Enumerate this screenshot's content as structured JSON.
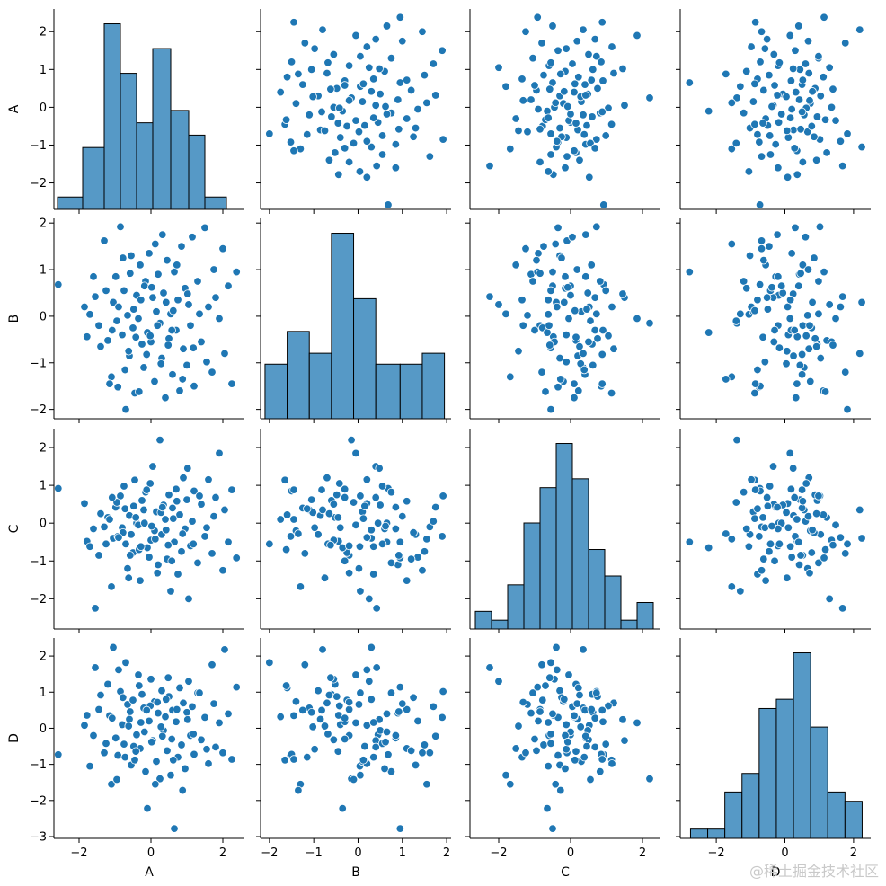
{
  "chart_data": {
    "type": "pairplot",
    "variables": [
      "A",
      "B",
      "C",
      "D"
    ],
    "marker_color": "#1f77b4",
    "hist_fill": "#5699c6",
    "axes": {
      "A": {
        "lim": [
          -2.7,
          2.6
        ],
        "ticks": [
          -2,
          -1,
          0,
          1,
          2
        ],
        "xticks": [
          -2,
          0,
          2
        ]
      },
      "B": {
        "lim": [
          -2.2,
          2.1
        ],
        "ticks": [
          -2,
          -1,
          0,
          1,
          2
        ],
        "xticks": [
          -2,
          -1,
          0,
          1,
          2
        ]
      },
      "C": {
        "lim": [
          -2.8,
          2.5
        ],
        "ticks": [
          -2,
          -1,
          0,
          1,
          2
        ],
        "xticks": [
          -2,
          0,
          2
        ]
      },
      "D": {
        "lim": [
          -3.05,
          2.5
        ],
        "ticks": [
          -3,
          -2,
          -1,
          0,
          1,
          2
        ],
        "xticks": [
          -2,
          0,
          2
        ]
      }
    },
    "histograms": {
      "A": {
        "edges": [
          -2.6,
          -1.9,
          -1.3,
          -0.85,
          -0.4,
          0.05,
          0.55,
          1.05,
          1.5,
          2.1,
          2.45
        ],
        "heights": [
          1.0,
          5.0,
          15.0,
          11.0,
          7.0,
          13.0,
          8.0,
          6.0,
          1.0,
          0.0
        ]
      },
      "B": {
        "edges": [
          -2.1,
          -1.6,
          -1.1,
          -0.6,
          -0.1,
          0.4,
          0.95,
          1.45,
          1.95
        ],
        "heights": [
          5.0,
          8.0,
          6.0,
          17.0,
          11.0,
          5.0,
          5.0,
          6.0
        ]
      },
      "C": {
        "edges": [
          -2.65,
          -2.2,
          -1.75,
          -1.3,
          -0.85,
          -0.4,
          0.05,
          0.5,
          0.95,
          1.4,
          1.85,
          2.3
        ],
        "heights": [
          2.0,
          1.0,
          5.0,
          12.0,
          16.0,
          21.0,
          17.0,
          9.0,
          6.0,
          1.0,
          3.0
        ]
      },
      "D": {
        "edges": [
          -2.75,
          -2.25,
          -1.75,
          -1.25,
          -0.75,
          -0.25,
          0.25,
          0.75,
          1.25,
          1.75,
          2.25
        ],
        "heights": [
          1.0,
          1.0,
          5.0,
          7.0,
          14.0,
          15.0,
          20.0,
          12.0,
          5.0,
          4.0
        ]
      }
    },
    "points": [
      [
        -2.58,
        0.68,
        0.92,
        -0.73
      ],
      [
        -1.85,
        0.2,
        0.52,
        0.08
      ],
      [
        -1.78,
        -0.44,
        -0.48,
        0.36
      ],
      [
        -1.7,
        0.04,
        -0.62,
        -1.05
      ],
      [
        -1.55,
        0.42,
        -2.25,
        1.68
      ],
      [
        -1.45,
        -0.2,
        -0.85,
        0.52
      ],
      [
        -1.3,
        1.62,
        -0.1,
        -0.68
      ],
      [
        -1.2,
        -0.52,
        0.15,
        1.22
      ],
      [
        -1.1,
        -1.3,
        -1.68,
        -1.55
      ],
      [
        -1.05,
        0.3,
        -0.4,
        2.24
      ],
      [
        -0.98,
        0.85,
        0.42,
        -0.27
      ],
      [
        -0.92,
        -1.52,
        -0.35,
        -0.75
      ],
      [
        -0.85,
        1.92,
        0.72,
        1.02
      ],
      [
        -0.8,
        -0.4,
        -0.12,
        0.1
      ],
      [
        -0.75,
        0.55,
        0.98,
        -0.44
      ],
      [
        -0.7,
        -2.0,
        -0.55,
        1.82
      ],
      [
        -0.65,
        0.02,
        -1.2,
        0.66
      ],
      [
        -0.6,
        -0.85,
        0.2,
        0.25
      ],
      [
        -0.55,
        1.3,
        -0.3,
        -1.02
      ],
      [
        -0.5,
        -0.25,
        -0.78,
        0.78
      ],
      [
        -0.45,
        -1.65,
        1.14,
        -0.88
      ],
      [
        -0.4,
        0.45,
        0.0,
        -0.18
      ],
      [
        -0.35,
        -0.05,
        -0.05,
        1.48
      ],
      [
        -0.3,
        1.1,
        -1.52,
        -0.56
      ],
      [
        -0.25,
        -0.6,
        0.6,
        0.94
      ],
      [
        -0.2,
        -1.1,
        0.35,
        0.56
      ],
      [
        -0.15,
        0.75,
        0.82,
        -1.2
      ],
      [
        -0.1,
        -0.35,
        -0.65,
        -2.22
      ],
      [
        -0.05,
        1.35,
        -0.9,
        0.2
      ],
      [
        0.0,
        -0.55,
        -0.45,
        1.36
      ],
      [
        0.05,
        0.4,
        1.5,
        -0.34
      ],
      [
        0.1,
        -1.4,
        -0.2,
        0.74
      ],
      [
        0.15,
        0.1,
        0.3,
        -0.92
      ],
      [
        0.2,
        0.9,
        -1.1,
        0.42
      ],
      [
        0.25,
        -0.15,
        2.2,
        -1.4
      ],
      [
        0.3,
        -0.9,
        -0.3,
        1.04
      ],
      [
        0.35,
        0.5,
        0.48,
        -0.06
      ],
      [
        0.4,
        -1.75,
        0.1,
        0.32
      ],
      [
        0.45,
        1.2,
        -0.95,
        -0.62
      ],
      [
        0.5,
        -0.48,
        0.75,
        0.88
      ],
      [
        0.55,
        0.05,
        -1.8,
        -1.3
      ],
      [
        0.6,
        -1.25,
        0.4,
        0.5
      ],
      [
        0.65,
        0.95,
        -0.5,
        -2.78
      ],
      [
        0.7,
        -0.3,
        0.9,
        0.18
      ],
      [
        0.75,
        0.35,
        -1.35,
        -0.8
      ],
      [
        0.8,
        -1.6,
        0.22,
        1.12
      ],
      [
        0.85,
        1.5,
        -0.75,
        -0.46
      ],
      [
        0.9,
        -0.7,
        1.2,
        0.7
      ],
      [
        0.95,
        0.6,
        -0.15,
        -1.12
      ],
      [
        1.0,
        -1.05,
        0.62,
        0.44
      ],
      [
        1.05,
        0.25,
        -2.0,
        1.3
      ],
      [
        1.1,
        -0.2,
        -0.6,
        -0.2
      ],
      [
        1.15,
        1.7,
        0.05,
        0.6
      ],
      [
        1.2,
        -1.5,
        0.85,
        -0.72
      ],
      [
        1.3,
        0.75,
        -1.05,
        0.98
      ],
      [
        1.4,
        -0.55,
        0.5,
        -0.32
      ],
      [
        1.5,
        1.9,
        -0.35,
        0.3
      ],
      [
        1.6,
        0.2,
        1.15,
        -0.98
      ],
      [
        1.7,
        -1.2,
        -0.8,
        1.76
      ],
      [
        1.8,
        0.4,
        0.68,
        -0.52
      ],
      [
        1.9,
        -0.05,
        1.85,
        0.15
      ],
      [
        2.0,
        1.45,
        -1.25,
        -0.68
      ],
      [
        2.05,
        -0.8,
        0.35,
        2.18
      ],
      [
        2.15,
        0.65,
        -0.5,
        0.4
      ],
      [
        2.25,
        -1.45,
        0.88,
        -0.86
      ],
      [
        2.38,
        0.95,
        -0.92,
        1.14
      ],
      [
        -1.15,
        -1.45,
        0.1,
        0.35
      ],
      [
        -0.95,
        -0.1,
        0.55,
        -1.42
      ],
      [
        -0.78,
        1.25,
        -0.25,
        0.85
      ],
      [
        -0.62,
        -0.75,
        -1.45,
        0.06
      ],
      [
        -0.48,
        0.15,
        0.45,
        -0.5
      ],
      [
        -0.33,
        -1.62,
        -0.7,
        1.18
      ],
      [
        -0.18,
        0.65,
        0.0,
        -0.1
      ],
      [
        -0.02,
        -0.42,
        1.05,
        0.62
      ],
      [
        0.12,
        1.55,
        -0.42,
        -1.55
      ],
      [
        0.28,
        -1.02,
        0.28,
        0.04
      ],
      [
        0.42,
        0.3,
        -0.18,
        0.8
      ],
      [
        0.58,
        -0.3,
        -1.0,
        -0.3
      ],
      [
        0.72,
        1.1,
        0.58,
        0.52
      ],
      [
        0.88,
        -1.35,
        -0.28,
        -1.72
      ],
      [
        1.02,
        0.48,
        1.45,
        0.24
      ],
      [
        1.18,
        -0.68,
        -0.55,
        -0.16
      ],
      [
        1.35,
        0.05,
        0.72,
        0.98
      ],
      [
        1.55,
        -0.98,
        -0.12,
        -0.58
      ],
      [
        1.75,
        1.0,
        0.18,
        0.68
      ],
      [
        -1.6,
        0.85,
        -0.15,
        -0.2
      ],
      [
        -1.4,
        -0.65,
        0.25,
        0.92
      ],
      [
        -1.25,
        0.55,
        -0.55,
        -0.42
      ],
      [
        -1.08,
        -0.3,
        0.68,
        0.28
      ],
      [
        -0.9,
        0.2,
        -0.38,
        1.62
      ],
      [
        -0.72,
        -1.15,
        0.38,
        -0.8
      ],
      [
        -0.58,
        0.92,
        -0.85,
        0.46
      ],
      [
        -0.42,
        -0.45,
        0.15,
        -0.64
      ],
      [
        -0.28,
        0.35,
        -0.62,
        0.16
      ],
      [
        -0.12,
        -0.82,
        0.88,
        0.5
      ],
      [
        0.02,
        0.62,
        -0.08,
        -0.38
      ],
      [
        0.18,
        -0.2,
        -1.32,
        0.72
      ],
      [
        0.32,
        1.75,
        0.42,
        -0.22
      ],
      [
        0.48,
        -0.62,
        -0.58,
        1.4
      ],
      [
        0.62,
        0.12,
        0.12,
        -0.88
      ]
    ],
    "watermark": "@稀土掘金技术社区"
  }
}
